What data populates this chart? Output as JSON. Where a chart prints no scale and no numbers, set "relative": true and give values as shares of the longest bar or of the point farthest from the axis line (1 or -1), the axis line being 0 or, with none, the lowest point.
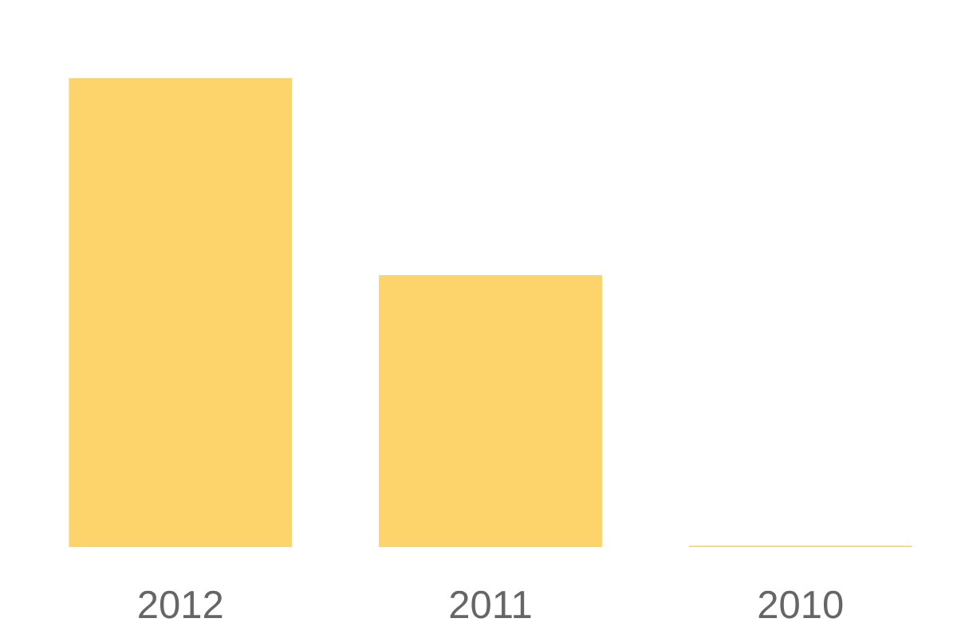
{
  "chart_data": {
    "type": "bar",
    "categories": [
      "2012",
      "2011",
      "2010"
    ],
    "values": [
      1,
      0.58,
      0.003
    ],
    "color": "#fdd46b",
    "relative": true
  }
}
